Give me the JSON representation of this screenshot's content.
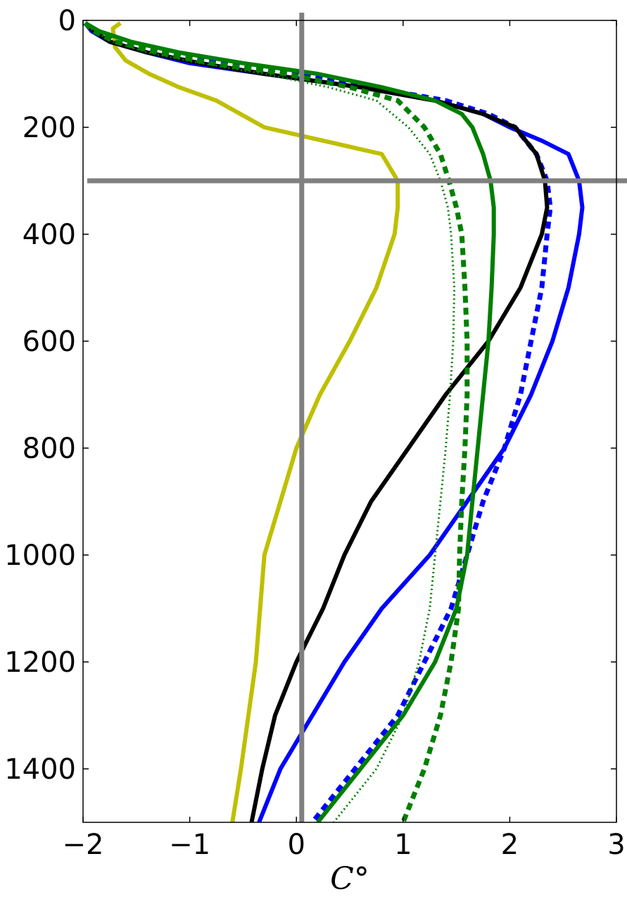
{
  "chart_data": {
    "type": "line",
    "title": "",
    "xlabel": "C°",
    "ylabel": "",
    "xlim": [
      -2,
      3
    ],
    "ylim": [
      1500,
      0
    ],
    "y_inverted": true,
    "grid": false,
    "legend": "none",
    "x_ticks": [
      {
        "value": -2,
        "label": "−2"
      },
      {
        "value": -1,
        "label": "−1"
      },
      {
        "value": 0,
        "label": "0"
      },
      {
        "value": 1,
        "label": "1"
      },
      {
        "value": 2,
        "label": "2"
      },
      {
        "value": 3,
        "label": "3"
      }
    ],
    "y_ticks": [
      {
        "value": 0,
        "label": "0"
      },
      {
        "value": 200,
        "label": "200"
      },
      {
        "value": 400,
        "label": "400"
      },
      {
        "value": 600,
        "label": "600"
      },
      {
        "value": 800,
        "label": "800"
      },
      {
        "value": 1000,
        "label": "1000"
      },
      {
        "value": 1200,
        "label": "1200"
      },
      {
        "value": 1400,
        "label": "1400"
      }
    ],
    "reference_lines": [
      {
        "orientation": "vertical",
        "value": 0.05,
        "color": "#808080"
      },
      {
        "orientation": "horizontal",
        "value": 300,
        "color": "#808080"
      }
    ],
    "series": [
      {
        "color": "#bfbf00",
        "style": "solid",
        "width": 6,
        "points": [
          [
            -1.65,
            5
          ],
          [
            -1.72,
            15
          ],
          [
            -1.7,
            50
          ],
          [
            -1.6,
            75
          ],
          [
            -1.38,
            100
          ],
          [
            -1.1,
            125
          ],
          [
            -0.75,
            150
          ],
          [
            -0.3,
            200
          ],
          [
            0.8,
            250
          ],
          [
            0.95,
            300
          ],
          [
            0.95,
            350
          ],
          [
            0.92,
            400
          ],
          [
            0.75,
            500
          ],
          [
            0.5,
            600
          ],
          [
            0.22,
            700
          ],
          [
            0,
            800
          ],
          [
            -0.15,
            900
          ],
          [
            -0.3,
            1000
          ],
          [
            -0.38,
            1200
          ],
          [
            -0.52,
            1400
          ],
          [
            -0.6,
            1500
          ]
        ]
      },
      {
        "color": "#0000ff",
        "style": "solid",
        "width": 6,
        "points": [
          [
            -1.98,
            5
          ],
          [
            -1.92,
            20
          ],
          [
            -1.75,
            40
          ],
          [
            -1.4,
            60
          ],
          [
            -1.0,
            80
          ],
          [
            -0.3,
            100
          ],
          [
            0.6,
            125
          ],
          [
            1.3,
            150
          ],
          [
            1.75,
            175
          ],
          [
            2.0,
            200
          ],
          [
            2.3,
            225
          ],
          [
            2.55,
            250
          ],
          [
            2.65,
            300
          ],
          [
            2.68,
            350
          ],
          [
            2.65,
            400
          ],
          [
            2.55,
            500
          ],
          [
            2.4,
            600
          ],
          [
            2.2,
            700
          ],
          [
            1.95,
            800
          ],
          [
            1.6,
            900
          ],
          [
            1.25,
            1000
          ],
          [
            0.8,
            1100
          ],
          [
            0.45,
            1200
          ],
          [
            0.15,
            1300
          ],
          [
            -0.15,
            1400
          ],
          [
            -0.35,
            1500
          ]
        ]
      },
      {
        "color": "#0000ff",
        "style": "dashed",
        "width": 7,
        "points": [
          [
            -1.98,
            5
          ],
          [
            -1.9,
            20
          ],
          [
            -1.7,
            40
          ],
          [
            -1.3,
            60
          ],
          [
            -0.7,
            80
          ],
          [
            0.0,
            100
          ],
          [
            0.7,
            125
          ],
          [
            1.4,
            150
          ],
          [
            1.8,
            175
          ],
          [
            2.05,
            200
          ],
          [
            2.25,
            250
          ],
          [
            2.35,
            300
          ],
          [
            2.38,
            350
          ],
          [
            2.35,
            400
          ],
          [
            2.3,
            500
          ],
          [
            2.2,
            600
          ],
          [
            2.1,
            700
          ],
          [
            1.95,
            800
          ],
          [
            1.75,
            900
          ],
          [
            1.6,
            1000
          ],
          [
            1.45,
            1100
          ],
          [
            1.2,
            1200
          ],
          [
            0.95,
            1300
          ],
          [
            0.55,
            1400
          ],
          [
            0.15,
            1500
          ]
        ]
      },
      {
        "color": "#000000",
        "style": "solid",
        "width": 6,
        "points": [
          [
            -1.98,
            5
          ],
          [
            -1.9,
            20
          ],
          [
            -1.75,
            40
          ],
          [
            -1.4,
            60
          ],
          [
            -0.9,
            80
          ],
          [
            -0.3,
            100
          ],
          [
            0.6,
            125
          ],
          [
            1.3,
            150
          ],
          [
            1.75,
            175
          ],
          [
            2.05,
            200
          ],
          [
            2.25,
            250
          ],
          [
            2.33,
            300
          ],
          [
            2.35,
            350
          ],
          [
            2.3,
            400
          ],
          [
            2.1,
            500
          ],
          [
            1.8,
            600
          ],
          [
            1.4,
            700
          ],
          [
            1.05,
            800
          ],
          [
            0.7,
            900
          ],
          [
            0.45,
            1000
          ],
          [
            0.25,
            1100
          ],
          [
            0.0,
            1200
          ],
          [
            -0.2,
            1300
          ],
          [
            -0.32,
            1400
          ],
          [
            -0.42,
            1500
          ]
        ]
      },
      {
        "color": "#007f00",
        "style": "solid",
        "width": 6,
        "points": [
          [
            -1.98,
            5
          ],
          [
            -1.85,
            20
          ],
          [
            -1.55,
            40
          ],
          [
            -1.1,
            60
          ],
          [
            -0.5,
            80
          ],
          [
            0.2,
            100
          ],
          [
            0.8,
            125
          ],
          [
            1.3,
            150
          ],
          [
            1.55,
            175
          ],
          [
            1.65,
            200
          ],
          [
            1.75,
            250
          ],
          [
            1.82,
            300
          ],
          [
            1.85,
            350
          ],
          [
            1.85,
            400
          ],
          [
            1.83,
            500
          ],
          [
            1.8,
            600
          ],
          [
            1.75,
            700
          ],
          [
            1.7,
            800
          ],
          [
            1.65,
            900
          ],
          [
            1.6,
            1000
          ],
          [
            1.5,
            1100
          ],
          [
            1.3,
            1200
          ],
          [
            1.0,
            1300
          ],
          [
            0.6,
            1400
          ],
          [
            0.2,
            1500
          ]
        ]
      },
      {
        "color": "#007f00",
        "style": "dashed",
        "width": 7,
        "points": [
          [
            -1.98,
            5
          ],
          [
            -1.9,
            20
          ],
          [
            -1.7,
            40
          ],
          [
            -1.3,
            60
          ],
          [
            -0.8,
            80
          ],
          [
            -0.1,
            100
          ],
          [
            0.5,
            125
          ],
          [
            0.95,
            150
          ],
          [
            1.2,
            200
          ],
          [
            1.35,
            250
          ],
          [
            1.43,
            300
          ],
          [
            1.5,
            350
          ],
          [
            1.55,
            400
          ],
          [
            1.58,
            500
          ],
          [
            1.6,
            600
          ],
          [
            1.6,
            700
          ],
          [
            1.58,
            800
          ],
          [
            1.55,
            900
          ],
          [
            1.53,
            1000
          ],
          [
            1.52,
            1100
          ],
          [
            1.45,
            1200
          ],
          [
            1.35,
            1300
          ],
          [
            1.2,
            1400
          ],
          [
            1.0,
            1500
          ]
        ]
      },
      {
        "color": "#007f00",
        "style": "dotted",
        "width": 3,
        "points": [
          [
            -1.98,
            5
          ],
          [
            -1.9,
            20
          ],
          [
            -1.72,
            40
          ],
          [
            -1.4,
            60
          ],
          [
            -0.9,
            80
          ],
          [
            -0.3,
            100
          ],
          [
            0.3,
            125
          ],
          [
            0.75,
            150
          ],
          [
            1.05,
            200
          ],
          [
            1.25,
            250
          ],
          [
            1.35,
            300
          ],
          [
            1.42,
            350
          ],
          [
            1.45,
            400
          ],
          [
            1.48,
            500
          ],
          [
            1.47,
            600
          ],
          [
            1.44,
            700
          ],
          [
            1.4,
            800
          ],
          [
            1.35,
            900
          ],
          [
            1.3,
            1000
          ],
          [
            1.25,
            1100
          ],
          [
            1.15,
            1200
          ],
          [
            1.0,
            1300
          ],
          [
            0.75,
            1400
          ],
          [
            0.35,
            1500
          ]
        ]
      }
    ]
  }
}
